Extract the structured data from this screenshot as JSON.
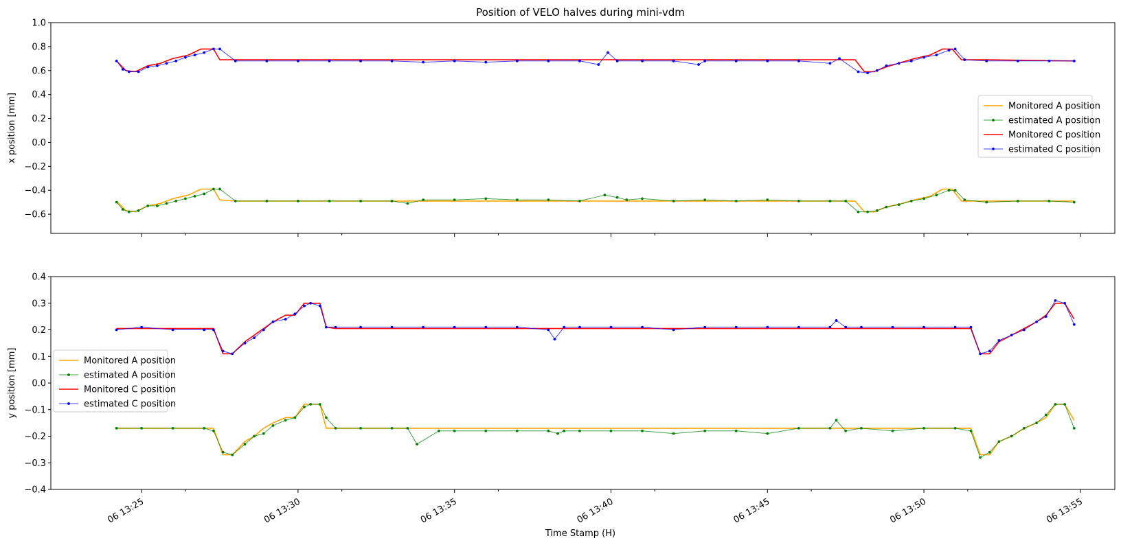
{
  "figure": {
    "title": "Position of VELO halves during mini-vdm",
    "xlabel": "Time Stamp (H)"
  },
  "colors": {
    "monitored_a": "#ffa500",
    "estimated_a": "#008000",
    "monitored_c": "#ff0000",
    "estimated_c": "#0000ff"
  },
  "chart_data": [
    {
      "type": "line",
      "title": "Position of VELO halves during mini-vdm",
      "xlabel": "",
      "ylabel": "x position [mm]",
      "x_unit": "minutes after 06 13:00",
      "xlim": [
        22.1,
        56.1
      ],
      "ylim": [
        -0.76,
        1.0
      ],
      "yticks": [
        -0.6,
        -0.4,
        -0.2,
        0.0,
        0.2,
        0.4,
        0.6,
        0.8,
        1.0
      ],
      "ytick_labels": [
        "−0.6",
        "−0.4",
        "−0.2",
        "0.0",
        "0.2",
        "0.4",
        "0.6",
        "0.8",
        "1.0"
      ],
      "xticks": [
        25,
        30,
        35,
        40,
        45,
        50,
        55
      ],
      "xtick_labels": [
        "06 13:25",
        "06 13:30",
        "06 13:35",
        "06 13:40",
        "06 13:45",
        "06 13:50",
        "06 13:55"
      ],
      "minor_xticks": [
        26.4,
        31.4,
        36.4,
        41.4,
        46.4,
        51.4,
        56.4
      ],
      "legend": "center-right",
      "grid": false,
      "series": [
        {
          "name": "Monitored A position",
          "style": "line",
          "x": [
            24.2,
            24.5,
            24.8,
            25.2,
            25.6,
            26.0,
            26.5,
            26.9,
            27.3,
            27.5,
            28.0,
            47.8,
            48.1,
            48.4,
            48.8,
            49.3,
            49.7,
            50.2,
            50.6,
            50.9,
            51.2,
            52.0,
            54.8
          ],
          "y": [
            -0.49,
            -0.57,
            -0.58,
            -0.53,
            -0.51,
            -0.47,
            -0.44,
            -0.39,
            -0.39,
            -0.48,
            -0.49,
            -0.49,
            -0.58,
            -0.58,
            -0.54,
            -0.51,
            -0.48,
            -0.45,
            -0.39,
            -0.39,
            -0.49,
            -0.49,
            -0.49
          ]
        },
        {
          "name": "estimated A position",
          "style": "marker-line",
          "x": [
            24.2,
            24.4,
            24.6,
            24.9,
            25.2,
            25.5,
            25.8,
            26.1,
            26.4,
            26.7,
            27.0,
            27.3,
            27.5,
            28.0,
            29.0,
            30.0,
            31.0,
            32.0,
            33.0,
            33.5,
            34.0,
            35.0,
            36.0,
            37.0,
            38.0,
            39.0,
            39.8,
            40.2,
            40.5,
            41.0,
            42.0,
            43.0,
            44.0,
            45.0,
            46.0,
            47.0,
            47.5,
            47.9,
            48.2,
            48.5,
            48.8,
            49.2,
            49.6,
            50.0,
            50.4,
            50.8,
            51.0,
            51.3,
            52.0,
            53.0,
            54.0,
            54.8
          ],
          "y": [
            -0.5,
            -0.56,
            -0.58,
            -0.57,
            -0.53,
            -0.53,
            -0.51,
            -0.49,
            -0.47,
            -0.45,
            -0.43,
            -0.39,
            -0.39,
            -0.49,
            -0.49,
            -0.49,
            -0.49,
            -0.49,
            -0.49,
            -0.51,
            -0.48,
            -0.48,
            -0.47,
            -0.48,
            -0.48,
            -0.49,
            -0.44,
            -0.46,
            -0.48,
            -0.47,
            -0.49,
            -0.48,
            -0.49,
            -0.48,
            -0.49,
            -0.49,
            -0.49,
            -0.58,
            -0.58,
            -0.57,
            -0.54,
            -0.52,
            -0.49,
            -0.47,
            -0.44,
            -0.4,
            -0.4,
            -0.48,
            -0.5,
            -0.49,
            -0.49,
            -0.5
          ]
        },
        {
          "name": "Monitored C position",
          "style": "line",
          "x": [
            24.2,
            24.5,
            24.8,
            25.2,
            25.6,
            26.0,
            26.5,
            26.9,
            27.3,
            27.5,
            28.0,
            47.8,
            48.1,
            48.4,
            48.8,
            49.3,
            49.7,
            50.2,
            50.6,
            50.9,
            51.2,
            52.0,
            54.8
          ],
          "y": [
            0.68,
            0.6,
            0.59,
            0.64,
            0.66,
            0.7,
            0.73,
            0.78,
            0.78,
            0.69,
            0.69,
            0.69,
            0.59,
            0.59,
            0.63,
            0.67,
            0.7,
            0.73,
            0.78,
            0.78,
            0.69,
            0.69,
            0.68
          ]
        },
        {
          "name": "estimated C position",
          "style": "marker-line",
          "x": [
            24.2,
            24.4,
            24.6,
            24.9,
            25.2,
            25.5,
            25.8,
            26.1,
            26.4,
            26.7,
            27.0,
            27.3,
            27.5,
            28.0,
            29.0,
            30.0,
            31.0,
            32.0,
            33.0,
            34.0,
            35.0,
            36.0,
            37.0,
            38.0,
            39.0,
            39.6,
            39.9,
            40.2,
            41.0,
            42.0,
            42.8,
            43.0,
            44.0,
            45.0,
            46.0,
            47.0,
            47.3,
            47.9,
            48.2,
            48.5,
            48.8,
            49.2,
            49.6,
            50.0,
            50.4,
            50.8,
            51.0,
            51.3,
            52.0,
            53.0,
            54.0,
            54.8
          ],
          "y": [
            0.68,
            0.61,
            0.59,
            0.59,
            0.63,
            0.64,
            0.66,
            0.68,
            0.71,
            0.73,
            0.75,
            0.78,
            0.78,
            0.68,
            0.68,
            0.68,
            0.68,
            0.68,
            0.68,
            0.67,
            0.68,
            0.67,
            0.68,
            0.68,
            0.68,
            0.65,
            0.75,
            0.68,
            0.68,
            0.68,
            0.65,
            0.68,
            0.68,
            0.68,
            0.68,
            0.66,
            0.7,
            0.59,
            0.58,
            0.6,
            0.64,
            0.66,
            0.68,
            0.71,
            0.73,
            0.77,
            0.78,
            0.69,
            0.68,
            0.68,
            0.68,
            0.68
          ]
        }
      ]
    },
    {
      "type": "line",
      "title": "",
      "xlabel": "Time Stamp (H)",
      "ylabel": "y position [mm]",
      "x_unit": "minutes after 06 13:00",
      "xlim": [
        22.1,
        56.1
      ],
      "ylim": [
        -0.4,
        0.4
      ],
      "yticks": [
        -0.4,
        -0.3,
        -0.2,
        -0.1,
        0.0,
        0.1,
        0.2,
        0.3,
        0.4
      ],
      "ytick_labels": [
        "−0.4",
        "−0.3",
        "−0.2",
        "−0.1",
        "0.0",
        "0.1",
        "0.2",
        "0.3",
        "0.4"
      ],
      "xticks": [
        25,
        30,
        35,
        40,
        45,
        50,
        55
      ],
      "xtick_labels": [
        "06 13:25",
        "06 13:30",
        "06 13:35",
        "06 13:40",
        "06 13:45",
        "06 13:50",
        "06 13:55"
      ],
      "minor_xticks": [
        26.4,
        31.4,
        36.4,
        41.4,
        46.4,
        51.4,
        56.4
      ],
      "legend": "center-left",
      "grid": false,
      "series": [
        {
          "name": "Monitored A position",
          "style": "line",
          "x": [
            24.2,
            27.3,
            27.6,
            27.9,
            28.3,
            28.6,
            28.9,
            29.2,
            29.6,
            29.9,
            30.2,
            30.4,
            30.7,
            30.9,
            31.2,
            51.5,
            51.8,
            52.1,
            52.4,
            52.8,
            53.2,
            53.6,
            53.9,
            54.2,
            54.5,
            54.8
          ],
          "y": [
            -0.17,
            -0.17,
            -0.27,
            -0.27,
            -0.22,
            -0.2,
            -0.17,
            -0.15,
            -0.13,
            -0.13,
            -0.08,
            -0.08,
            -0.08,
            -0.17,
            -0.17,
            -0.17,
            -0.27,
            -0.27,
            -0.22,
            -0.2,
            -0.17,
            -0.15,
            -0.13,
            -0.08,
            -0.08,
            -0.14
          ]
        },
        {
          "name": "estimated A position",
          "style": "marker-line",
          "x": [
            24.2,
            25.0,
            26.0,
            27.0,
            27.3,
            27.6,
            27.9,
            28.3,
            28.6,
            28.9,
            29.2,
            29.6,
            29.9,
            30.2,
            30.4,
            30.7,
            30.9,
            31.2,
            32.0,
            33.0,
            33.5,
            33.8,
            34.5,
            35.0,
            36.0,
            37.0,
            38.0,
            38.3,
            38.5,
            39.0,
            40.0,
            41.0,
            42.0,
            43.0,
            44.0,
            45.0,
            46.0,
            47.0,
            47.2,
            47.5,
            48.0,
            49.0,
            50.0,
            51.0,
            51.5,
            51.8,
            52.1,
            52.4,
            52.8,
            53.2,
            53.6,
            53.9,
            54.2,
            54.5,
            54.8
          ],
          "y": [
            -0.17,
            -0.17,
            -0.17,
            -0.17,
            -0.18,
            -0.26,
            -0.27,
            -0.23,
            -0.2,
            -0.19,
            -0.16,
            -0.14,
            -0.13,
            -0.09,
            -0.08,
            -0.08,
            -0.13,
            -0.17,
            -0.17,
            -0.17,
            -0.17,
            -0.23,
            -0.18,
            -0.18,
            -0.18,
            -0.18,
            -0.18,
            -0.19,
            -0.18,
            -0.18,
            -0.18,
            -0.18,
            -0.19,
            -0.18,
            -0.18,
            -0.19,
            -0.17,
            -0.17,
            -0.14,
            -0.18,
            -0.17,
            -0.18,
            -0.17,
            -0.17,
            -0.18,
            -0.28,
            -0.26,
            -0.22,
            -0.2,
            -0.17,
            -0.15,
            -0.12,
            -0.08,
            -0.08,
            -0.17
          ]
        },
        {
          "name": "Monitored C position",
          "style": "line",
          "x": [
            24.2,
            27.3,
            27.6,
            27.9,
            28.3,
            28.6,
            28.9,
            29.2,
            29.6,
            29.9,
            30.2,
            30.4,
            30.7,
            30.9,
            31.2,
            51.5,
            51.8,
            52.1,
            52.4,
            52.8,
            53.2,
            53.6,
            53.9,
            54.2,
            54.5,
            54.8
          ],
          "y": [
            0.205,
            0.205,
            0.11,
            0.11,
            0.155,
            0.18,
            0.205,
            0.23,
            0.255,
            0.255,
            0.3,
            0.3,
            0.3,
            0.21,
            0.205,
            0.205,
            0.11,
            0.11,
            0.155,
            0.18,
            0.205,
            0.23,
            0.255,
            0.3,
            0.3,
            0.24
          ]
        },
        {
          "name": "estimated C position",
          "style": "marker-line",
          "x": [
            24.2,
            25.0,
            26.0,
            27.0,
            27.3,
            27.6,
            27.9,
            28.3,
            28.6,
            28.9,
            29.2,
            29.6,
            29.9,
            30.2,
            30.4,
            30.7,
            30.9,
            31.2,
            32.0,
            33.0,
            34.0,
            35.0,
            36.0,
            37.0,
            38.0,
            38.2,
            38.5,
            39.0,
            40.0,
            41.0,
            42.0,
            43.0,
            44.0,
            45.0,
            46.0,
            47.0,
            47.2,
            47.5,
            48.0,
            49.0,
            50.0,
            51.0,
            51.5,
            51.8,
            52.1,
            52.4,
            52.8,
            53.2,
            53.6,
            53.9,
            54.2,
            54.5,
            54.8
          ],
          "y": [
            0.2,
            0.21,
            0.2,
            0.2,
            0.2,
            0.12,
            0.11,
            0.15,
            0.17,
            0.2,
            0.23,
            0.24,
            0.26,
            0.29,
            0.3,
            0.29,
            0.21,
            0.21,
            0.21,
            0.21,
            0.21,
            0.21,
            0.21,
            0.21,
            0.2,
            0.165,
            0.21,
            0.21,
            0.21,
            0.21,
            0.2,
            0.21,
            0.21,
            0.21,
            0.21,
            0.21,
            0.235,
            0.21,
            0.21,
            0.21,
            0.21,
            0.21,
            0.21,
            0.11,
            0.12,
            0.16,
            0.18,
            0.2,
            0.23,
            0.25,
            0.31,
            0.3,
            0.22
          ]
        }
      ]
    }
  ]
}
